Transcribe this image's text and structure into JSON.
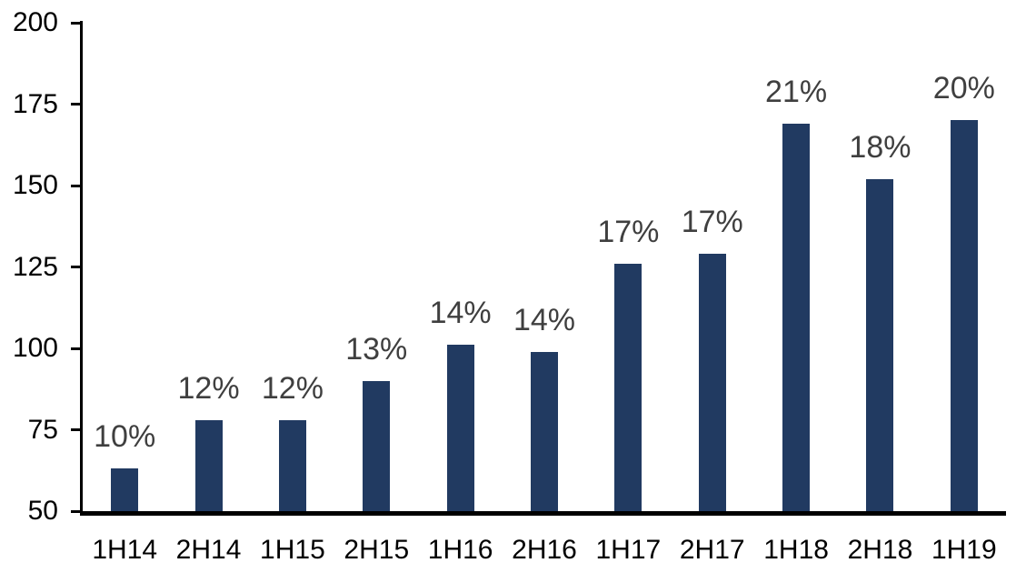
{
  "chart_data": {
    "type": "bar",
    "title": "",
    "categories": [
      "1H14",
      "2H14",
      "1H15",
      "2H15",
      "1H16",
      "2H16",
      "1H17",
      "2H17",
      "1H18",
      "2H18",
      "1H19"
    ],
    "values": [
      63,
      78,
      78,
      90,
      101,
      99,
      126,
      129,
      169,
      152,
      170
    ],
    "bar_labels": [
      "10%",
      "12%",
      "12%",
      "13%",
      "14%",
      "14%",
      "17%",
      "17%",
      "21%",
      "18%",
      "20%"
    ],
    "xlabel": "",
    "ylabel": "",
    "ylim": [
      50,
      200
    ],
    "yticks": [
      50,
      75,
      100,
      125,
      150,
      175,
      200
    ],
    "grid": false,
    "legend": false,
    "colors": {
      "bar": "#213A61",
      "data_label": "#3F3F3F",
      "axis": "#000000",
      "background": "#FFFFFF"
    }
  }
}
